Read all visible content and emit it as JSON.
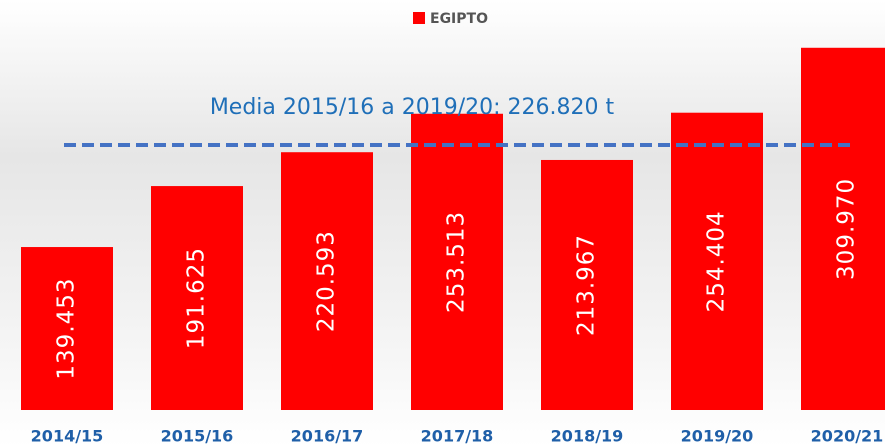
{
  "chart_data": {
    "type": "bar",
    "legend": "EGIPTO",
    "categories": [
      "2014/15",
      "2015/16",
      "2016/17",
      "2017/18",
      "2018/19",
      "2019/20",
      "2020/21"
    ],
    "values": [
      139453,
      191625,
      220593,
      253513,
      213967,
      254404,
      309970
    ],
    "value_labels": [
      "139.453",
      "191.625",
      "220.593",
      "253.513",
      "213.967",
      "254.404",
      "309.970"
    ],
    "color": "#ff0000",
    "ylim": [
      0,
      350000
    ],
    "average": {
      "value": 226820,
      "label": "Media 2015/16 a 2019/20: 226.820 t",
      "color": "#4472c4"
    }
  }
}
